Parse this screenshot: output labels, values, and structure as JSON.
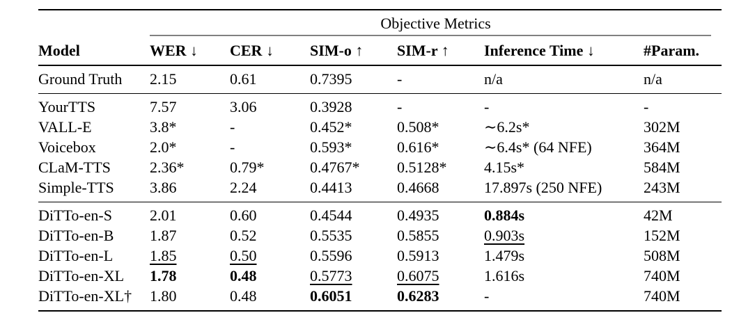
{
  "page": {
    "background_color": "#ffffff",
    "text_color": "#000000",
    "cmidrule_color": "#808080"
  },
  "table": {
    "span_header": "Objective Metrics",
    "columns": [
      "Model",
      "WER ↓",
      "CER ↓",
      "SIM-o ↑",
      "SIM-r ↑",
      "Inference Time ↓",
      "#Param."
    ],
    "groups": [
      {
        "id": "ground-truth",
        "rows": [
          {
            "model": "Ground Truth",
            "values": [
              {
                "text": "2.15"
              },
              {
                "text": "0.61"
              },
              {
                "text": "0.7395"
              },
              {
                "text": "-"
              },
              {
                "text": "n/a"
              },
              {
                "text": "n/a"
              }
            ]
          }
        ]
      },
      {
        "id": "baselines",
        "rows": [
          {
            "model": "YourTTS",
            "values": [
              {
                "text": "7.57"
              },
              {
                "text": "3.06"
              },
              {
                "text": "0.3928"
              },
              {
                "text": "-"
              },
              {
                "text": "-"
              },
              {
                "text": "-"
              }
            ]
          },
          {
            "model": "VALL-E",
            "values": [
              {
                "text": "3.8*"
              },
              {
                "text": "-"
              },
              {
                "text": "0.452*"
              },
              {
                "text": "0.508*"
              },
              {
                "text": "∼6.2s*"
              },
              {
                "text": "302M"
              }
            ]
          },
          {
            "model": "Voicebox",
            "values": [
              {
                "text": "2.0*"
              },
              {
                "text": "-"
              },
              {
                "text": "0.593*"
              },
              {
                "text": "0.616*"
              },
              {
                "text": "∼6.4s* (64 NFE)"
              },
              {
                "text": "364M"
              }
            ]
          },
          {
            "model": "CLaM-TTS",
            "values": [
              {
                "text": "2.36*"
              },
              {
                "text": "0.79*"
              },
              {
                "text": "0.4767*"
              },
              {
                "text": "0.5128*"
              },
              {
                "text": "4.15s*"
              },
              {
                "text": "584M"
              }
            ]
          },
          {
            "model": "Simple-TTS",
            "values": [
              {
                "text": "3.86"
              },
              {
                "text": "2.24"
              },
              {
                "text": "0.4413"
              },
              {
                "text": "0.4668"
              },
              {
                "text": "17.897s (250 NFE)"
              },
              {
                "text": "243M"
              }
            ]
          }
        ]
      },
      {
        "id": "ditto",
        "rows": [
          {
            "model": "DiTTo-en-S",
            "values": [
              {
                "text": "2.01"
              },
              {
                "text": "0.60"
              },
              {
                "text": "0.4544"
              },
              {
                "text": "0.4935"
              },
              {
                "text": "0.884s",
                "style": "bold"
              },
              {
                "text": "42M"
              }
            ]
          },
          {
            "model": "DiTTo-en-B",
            "values": [
              {
                "text": "1.87"
              },
              {
                "text": "0.52"
              },
              {
                "text": "0.5535"
              },
              {
                "text": "0.5855"
              },
              {
                "text": "0.903s",
                "style": "underline"
              },
              {
                "text": "152M"
              }
            ]
          },
          {
            "model": "DiTTo-en-L",
            "values": [
              {
                "text": "1.85",
                "style": "underline"
              },
              {
                "text": "0.50",
                "style": "underline"
              },
              {
                "text": "0.5596"
              },
              {
                "text": "0.5913"
              },
              {
                "text": "1.479s"
              },
              {
                "text": "508M"
              }
            ]
          },
          {
            "model": "DiTTo-en-XL",
            "values": [
              {
                "text": "1.78",
                "style": "bold"
              },
              {
                "text": "0.48",
                "style": "bold"
              },
              {
                "text": "0.5773",
                "style": "underline"
              },
              {
                "text": "0.6075",
                "style": "underline"
              },
              {
                "text": "1.616s"
              },
              {
                "text": "740M"
              }
            ]
          },
          {
            "model": "DiTTo-en-XL†",
            "values": [
              {
                "text": "1.80"
              },
              {
                "text": "0.48"
              },
              {
                "text": "0.6051",
                "style": "bold"
              },
              {
                "text": "0.6283",
                "style": "bold"
              },
              {
                "text": "-"
              },
              {
                "text": "740M"
              }
            ]
          }
        ]
      }
    ]
  }
}
